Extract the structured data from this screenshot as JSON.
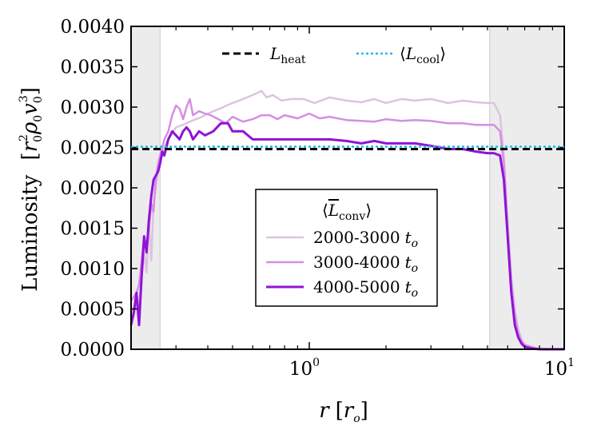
{
  "chart_data": {
    "type": "line",
    "xscale": "log",
    "xlim": [
      0.2,
      10
    ],
    "ylim": [
      0.0,
      0.004
    ],
    "xlabel": {
      "symbol": "r",
      "unit": "r",
      "unit_sub": "o"
    },
    "ylabel": {
      "text": "Luminosity",
      "units": "r0²ρ0v0³"
    },
    "y_ticks": [
      "0.0000",
      "0.0005",
      "0.0010",
      "0.0015",
      "0.0020",
      "0.0025",
      "0.0030",
      "0.0035",
      "0.0040"
    ],
    "y_tick_values": [
      0.0,
      0.0005,
      0.001,
      0.0015,
      0.002,
      0.0025,
      0.003,
      0.0035,
      0.004
    ],
    "x_ticks": [
      {
        "value": 1,
        "base": "10",
        "exp": "0"
      },
      {
        "value": 10,
        "base": "10",
        "exp": "1"
      }
    ],
    "shaded_regions": [
      {
        "x0": 0.2,
        "x1": 0.26,
        "color": "#ececec"
      },
      {
        "x0": 5.1,
        "x1": 10,
        "color": "#ececec"
      }
    ],
    "reference_lines": [
      {
        "name": "L_heat",
        "label_main": "L",
        "label_sub": "heat",
        "y": 0.00248,
        "color": "#000000",
        "style": "dashed"
      },
      {
        "name": "<L_cool>",
        "label_main": "L",
        "label_sub": "cool",
        "y": 0.00251,
        "color": "#1fb8e8",
        "style": "dotted"
      }
    ],
    "legend": {
      "title_main": "L",
      "title_sub": "conv",
      "location": "center"
    },
    "series": [
      {
        "name": "2000-3000",
        "unit": "t",
        "unit_sub": "o",
        "color": "#dcc3e0",
        "x": [
          0.2,
          0.205,
          0.21,
          0.215,
          0.22,
          0.225,
          0.23,
          0.235,
          0.24,
          0.245,
          0.25,
          0.255,
          0.26,
          0.265,
          0.27,
          0.28,
          0.29,
          0.3,
          0.32,
          0.34,
          0.36,
          0.38,
          0.4,
          0.43,
          0.46,
          0.5,
          0.55,
          0.6,
          0.65,
          0.68,
          0.72,
          0.78,
          0.85,
          0.95,
          1.05,
          1.2,
          1.4,
          1.6,
          1.8,
          2.0,
          2.3,
          2.6,
          3.0,
          3.5,
          4.0,
          4.5,
          5.0,
          5.3,
          5.6,
          5.8,
          6.0,
          6.2,
          6.4,
          6.6,
          6.8,
          7.0,
          7.5,
          8.0,
          9.0,
          10.0
        ],
        "y": [
          0.0004,
          0.0005,
          0.00065,
          0.00055,
          0.0009,
          0.0012,
          0.00095,
          0.0016,
          0.0011,
          0.0018,
          0.002,
          0.0022,
          0.0023,
          0.0024,
          0.0025,
          0.0026,
          0.00268,
          0.00275,
          0.00278,
          0.00282,
          0.00285,
          0.00288,
          0.00292,
          0.00296,
          0.003,
          0.00305,
          0.0031,
          0.00315,
          0.0032,
          0.00312,
          0.00315,
          0.00308,
          0.0031,
          0.0031,
          0.00305,
          0.00312,
          0.00308,
          0.00306,
          0.0031,
          0.00305,
          0.0031,
          0.00308,
          0.0031,
          0.00305,
          0.00308,
          0.00306,
          0.00305,
          0.00305,
          0.0029,
          0.0024,
          0.0016,
          0.0009,
          0.0005,
          0.00025,
          0.00012,
          6e-05,
          3e-05,
          1e-05,
          0.0,
          0.0
        ]
      },
      {
        "name": "3000-4000",
        "unit": "t",
        "unit_sub": "o",
        "color": "#d58ee3",
        "x": [
          0.2,
          0.205,
          0.21,
          0.215,
          0.22,
          0.225,
          0.23,
          0.235,
          0.24,
          0.245,
          0.25,
          0.255,
          0.26,
          0.265,
          0.27,
          0.28,
          0.29,
          0.3,
          0.31,
          0.32,
          0.33,
          0.34,
          0.35,
          0.37,
          0.39,
          0.41,
          0.44,
          0.47,
          0.5,
          0.55,
          0.6,
          0.65,
          0.7,
          0.75,
          0.8,
          0.9,
          1.0,
          1.1,
          1.2,
          1.4,
          1.6,
          1.8,
          2.0,
          2.3,
          2.6,
          3.0,
          3.5,
          4.0,
          4.5,
          5.0,
          5.3,
          5.6,
          5.8,
          6.0,
          6.2,
          6.4,
          6.6,
          6.8,
          7.0,
          7.5,
          8.0,
          9.0,
          10.0
        ],
        "y": [
          0.0006,
          0.00065,
          0.0007,
          0.0008,
          0.0011,
          0.0014,
          0.0012,
          0.0015,
          0.0018,
          0.0017,
          0.0021,
          0.0023,
          0.0024,
          0.0025,
          0.0026,
          0.0027,
          0.0029,
          0.00302,
          0.00298,
          0.00285,
          0.003,
          0.0031,
          0.0029,
          0.00295,
          0.00292,
          0.0029,
          0.00285,
          0.0028,
          0.00288,
          0.00282,
          0.00285,
          0.0029,
          0.0029,
          0.00285,
          0.0029,
          0.00286,
          0.00292,
          0.00286,
          0.00288,
          0.00284,
          0.00283,
          0.00282,
          0.00285,
          0.00283,
          0.00284,
          0.00283,
          0.0028,
          0.0028,
          0.00278,
          0.00278,
          0.00278,
          0.0027,
          0.0023,
          0.0015,
          0.0008,
          0.0004,
          0.0002,
          0.0001,
          5e-05,
          2e-05,
          0.0,
          0.0,
          0.0
        ]
      },
      {
        "name": "4000-5000",
        "unit": "t",
        "unit_sub": "o",
        "color": "#9013d6",
        "x": [
          0.2,
          0.205,
          0.21,
          0.215,
          0.22,
          0.225,
          0.23,
          0.235,
          0.24,
          0.245,
          0.25,
          0.255,
          0.26,
          0.265,
          0.27,
          0.28,
          0.29,
          0.3,
          0.31,
          0.32,
          0.33,
          0.34,
          0.35,
          0.37,
          0.39,
          0.42,
          0.45,
          0.48,
          0.5,
          0.55,
          0.6,
          0.65,
          0.7,
          0.8,
          0.9,
          1.0,
          1.1,
          1.2,
          1.4,
          1.6,
          1.8,
          2.0,
          2.3,
          2.6,
          3.0,
          3.5,
          4.0,
          4.5,
          5.0,
          5.3,
          5.6,
          5.8,
          6.0,
          6.2,
          6.4,
          6.6,
          6.8,
          7.0,
          7.5,
          8.0,
          9.0,
          10.0
        ],
        "y": [
          0.0003,
          0.00045,
          0.0007,
          0.0003,
          0.0009,
          0.0014,
          0.0012,
          0.0016,
          0.0019,
          0.0021,
          0.00215,
          0.0022,
          0.0023,
          0.00245,
          0.0024,
          0.0026,
          0.0027,
          0.00265,
          0.0026,
          0.0027,
          0.00275,
          0.0027,
          0.0026,
          0.0027,
          0.00265,
          0.0027,
          0.0028,
          0.0028,
          0.0027,
          0.0027,
          0.0026,
          0.0026,
          0.0026,
          0.0026,
          0.0026,
          0.0026,
          0.0026,
          0.0026,
          0.00258,
          0.00255,
          0.00258,
          0.00255,
          0.00255,
          0.00255,
          0.00252,
          0.00248,
          0.00248,
          0.00245,
          0.00243,
          0.00243,
          0.0024,
          0.0021,
          0.0014,
          0.0007,
          0.0003,
          0.00015,
          7e-05,
          3e-05,
          1e-05,
          0.0,
          0.0,
          0.0
        ]
      }
    ]
  }
}
